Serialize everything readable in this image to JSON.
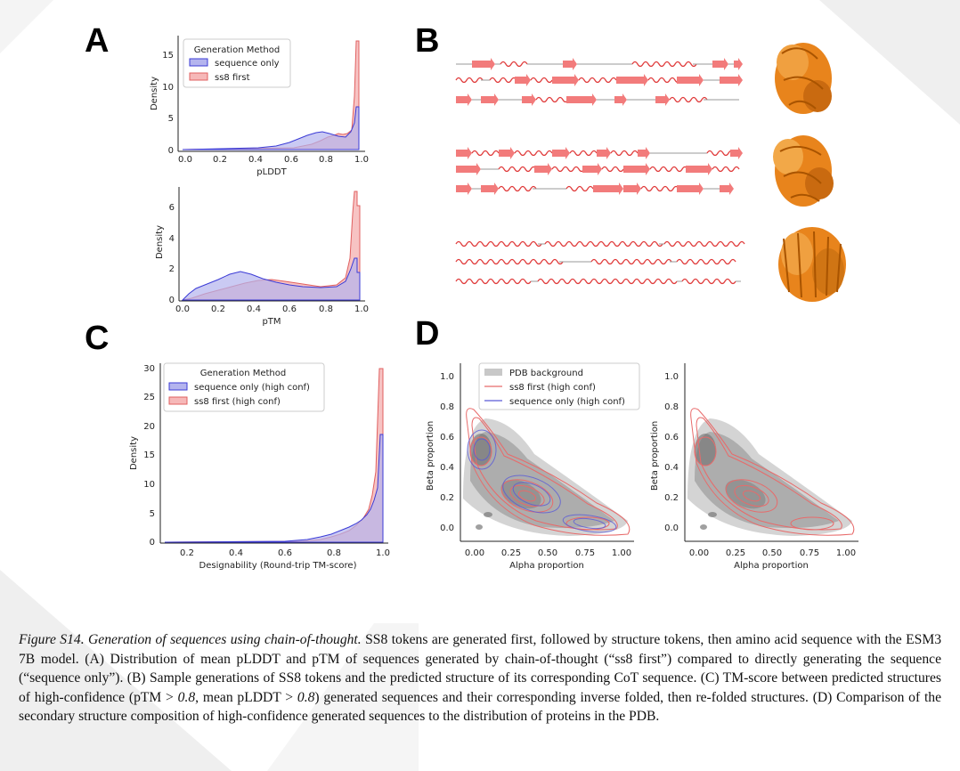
{
  "panels": {
    "A": {
      "letter": "A",
      "plot1": {
        "xlabel": "pLDDT",
        "ylabel": "Density",
        "xticks": [
          "0.0",
          "0.2",
          "0.4",
          "0.6",
          "0.8",
          "1.0"
        ],
        "yticks": [
          "0",
          "5",
          "10",
          "15"
        ],
        "legend": {
          "title": "Generation Method",
          "entries": [
            "sequence only",
            "ss8 first"
          ]
        }
      },
      "plot2": {
        "xlabel": "pTM",
        "ylabel": "Density",
        "xticks": [
          "0.0",
          "0.2",
          "0.4",
          "0.6",
          "0.8",
          "1.0"
        ],
        "yticks": [
          "0",
          "2",
          "4",
          "6"
        ]
      }
    },
    "B": {
      "letter": "B"
    },
    "C": {
      "letter": "C",
      "xlabel": "Designability (Round-trip TM-score)",
      "ylabel": "Density",
      "xticks": [
        "0.2",
        "0.4",
        "0.6",
        "0.8",
        "1.0"
      ],
      "yticks": [
        "0",
        "5",
        "10",
        "15",
        "20",
        "25",
        "30"
      ],
      "legend": {
        "title": "Generation Method",
        "entries": [
          "sequence only (high conf)",
          "ss8 first (high conf)"
        ]
      }
    },
    "D": {
      "letter": "D",
      "left": {
        "xlabel": "Alpha proportion",
        "ylabel": "Beta proportion",
        "xticks": [
          "0.00",
          "0.25",
          "0.50",
          "0.75",
          "1.00"
        ],
        "yticks": [
          "0.0",
          "0.2",
          "0.4",
          "0.6",
          "0.8",
          "1.0"
        ],
        "legend": [
          "PDB background",
          "ss8 first (high conf)",
          "sequence only (high conf)"
        ]
      },
      "right": {
        "xlabel": "Alpha proportion",
        "ylabel": "Beta proportion",
        "xticks": [
          "0.00",
          "0.25",
          "0.50",
          "0.75",
          "1.00"
        ],
        "yticks": [
          "0.0",
          "0.2",
          "0.4",
          "0.6",
          "0.8",
          "1.0"
        ]
      }
    }
  },
  "colors": {
    "seq_fill": "#b4b4ee",
    "seq_line": "#3b3bd6",
    "ss8_fill": "#f6b8b8",
    "ss8_line": "#e06060",
    "pdb": "#a8a8a8",
    "ss_red": "#f27b7b",
    "protein": "#e8841c"
  },
  "caption": {
    "label": "Figure S14. Generation of sequences using chain-of-thought.",
    "p1": " SS8 tokens are generated first, followed by structure tokens, then amino acid sequence with the ESM3 7B model. (A) Distribution of mean pLDDT and pTM of sequences generated by chain-of-thought (“ss8 first”) compared to directly generating the sequence (“sequence only”). (B) Sample generations of SS8 tokens and the predicted structure of its corresponding CoT sequence. (C) TM-score between predicted structures of high-confidence (pTM > ",
    "v1": "0.8",
    "p2": ", mean pLDDT > ",
    "v2": "0.8",
    "p3": ") generated sequences and their corresponding inverse folded, then re-folded structures. (D) Comparison of the secondary structure composition of high-confidence generated sequences to the distribution of proteins in the PDB."
  }
}
